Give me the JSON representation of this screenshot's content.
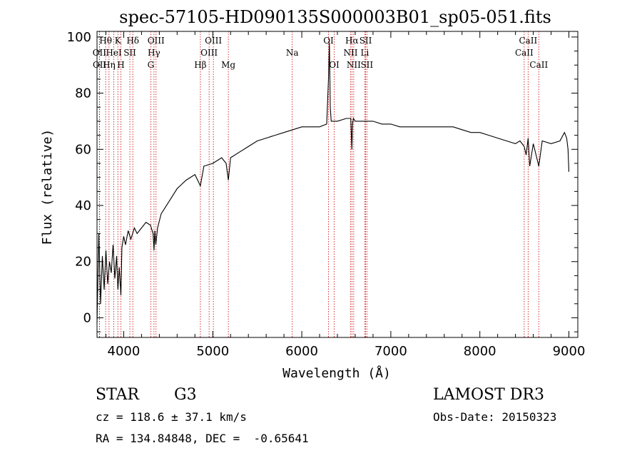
{
  "chart_data": {
    "type": "line",
    "title": "spec-57105-HD090135S000003B01_sp05-051.fits",
    "xlabel": "Wavelength (Å)",
    "ylabel": "Flux (relative)",
    "xlim": [
      3700,
      9100
    ],
    "ylim": [
      -7,
      102
    ],
    "xticks": [
      4000,
      5000,
      6000,
      7000,
      8000,
      9000
    ],
    "yticks": [
      0,
      20,
      40,
      60,
      80,
      100
    ],
    "grid": false,
    "series": [
      {
        "name": "flux",
        "x": [
          3700,
          3720,
          3740,
          3760,
          3780,
          3800,
          3820,
          3840,
          3860,
          3880,
          3900,
          3920,
          3935,
          3950,
          3968,
          3980,
          4000,
          4020,
          4050,
          4080,
          4100,
          4120,
          4150,
          4200,
          4250,
          4300,
          4330,
          4340,
          4350,
          4360,
          4380,
          4420,
          4500,
          4600,
          4700,
          4800,
          4861,
          4900,
          5000,
          5100,
          5150,
          5175,
          5200,
          5300,
          5400,
          5500,
          5600,
          5700,
          5800,
          5900,
          6000,
          6100,
          6200,
          6280,
          6300,
          6310,
          6320,
          6330,
          6364,
          6400,
          6500,
          6550,
          6563,
          6570,
          6580,
          6600,
          6700,
          6800,
          6900,
          7000,
          7100,
          7200,
          7300,
          7400,
          7500,
          7600,
          7700,
          7800,
          7900,
          8000,
          8100,
          8200,
          8300,
          8400,
          8450,
          8498,
          8520,
          8542,
          8560,
          8600,
          8662,
          8700,
          8800,
          8900,
          8950,
          8975,
          8990,
          9000
        ],
        "values": [
          -2,
          30,
          5,
          22,
          10,
          24,
          12,
          20,
          16,
          26,
          14,
          22,
          10,
          18,
          8,
          25,
          29,
          26,
          31,
          28,
          30,
          32,
          30,
          32,
          34,
          33,
          30,
          24,
          31,
          26,
          32,
          37,
          41,
          46,
          49,
          51,
          47,
          54,
          55,
          57,
          55,
          49,
          57,
          59,
          61,
          63,
          64,
          65,
          66,
          67,
          68,
          68,
          68,
          69,
          85,
          98,
          75,
          70,
          70,
          70,
          71,
          71,
          60,
          69,
          71,
          70,
          70,
          70,
          69,
          69,
          68,
          68,
          68,
          68,
          68,
          68,
          68,
          67,
          66,
          66,
          65,
          64,
          63,
          62,
          63,
          61,
          58,
          64,
          54,
          62,
          54,
          63,
          62,
          63,
          66,
          64,
          60,
          52
        ]
      }
    ],
    "lines": [
      {
        "label": "Hθ",
        "x": 3797,
        "row": 1
      },
      {
        "label": "OII",
        "x": 3727,
        "row": 2
      },
      {
        "label": "OII",
        "x": 3729,
        "row": 3
      },
      {
        "label": "K",
        "x": 3934,
        "row": 1
      },
      {
        "label": "HeI",
        "x": 3889,
        "row": 2
      },
      {
        "label": "Hη",
        "x": 3835,
        "row": 3
      },
      {
        "label": "Hδ",
        "x": 4102,
        "row": 1
      },
      {
        "label": "SII",
        "x": 4069,
        "row": 2
      },
      {
        "label": "H",
        "x": 3968,
        "row": 3
      },
      {
        "label": "OIII",
        "x": 4363,
        "row": 1
      },
      {
        "label": "Hγ",
        "x": 4340,
        "row": 2
      },
      {
        "label": "G",
        "x": 4304,
        "row": 3
      },
      {
        "label": "Hβ",
        "x": 4861,
        "row": 3
      },
      {
        "label": "OIII",
        "x": 5007,
        "row": 1
      },
      {
        "label": "OIII",
        "x": 4959,
        "row": 2
      },
      {
        "label": "Mg",
        "x": 5175,
        "row": 3
      },
      {
        "label": "Na",
        "x": 5893,
        "row": 2
      },
      {
        "label": "OI",
        "x": 6300,
        "row": 1
      },
      {
        "label": "OI",
        "x": 6364,
        "row": 3
      },
      {
        "label": "Hα",
        "x": 6563,
        "row": 1
      },
      {
        "label": "SII",
        "x": 6717,
        "row": 1
      },
      {
        "label": "NII",
        "x": 6548,
        "row": 2
      },
      {
        "label": "Li",
        "x": 6708,
        "row": 2
      },
      {
        "label": "NII",
        "x": 6583,
        "row": 3
      },
      {
        "label": "SII",
        "x": 6731,
        "row": 3
      },
      {
        "label": "CaII",
        "x": 8542,
        "row": 1
      },
      {
        "label": "CaII",
        "x": 8498,
        "row": 2
      },
      {
        "label": "CaII",
        "x": 8662,
        "row": 3
      }
    ]
  },
  "info": {
    "object_class": "STAR",
    "subclass": "G3",
    "survey": "LAMOST DR3",
    "cz": "cz = 118.6 ± 37.1 km/s",
    "obs_date": "Obs-Date: 20150323",
    "radec": "RA = 134.84848, DEC =  -0.65641"
  },
  "colors": {
    "spectrum": "#000000",
    "line_marker": "#cc0000",
    "axis": "#000000",
    "background": "#ffffff"
  }
}
